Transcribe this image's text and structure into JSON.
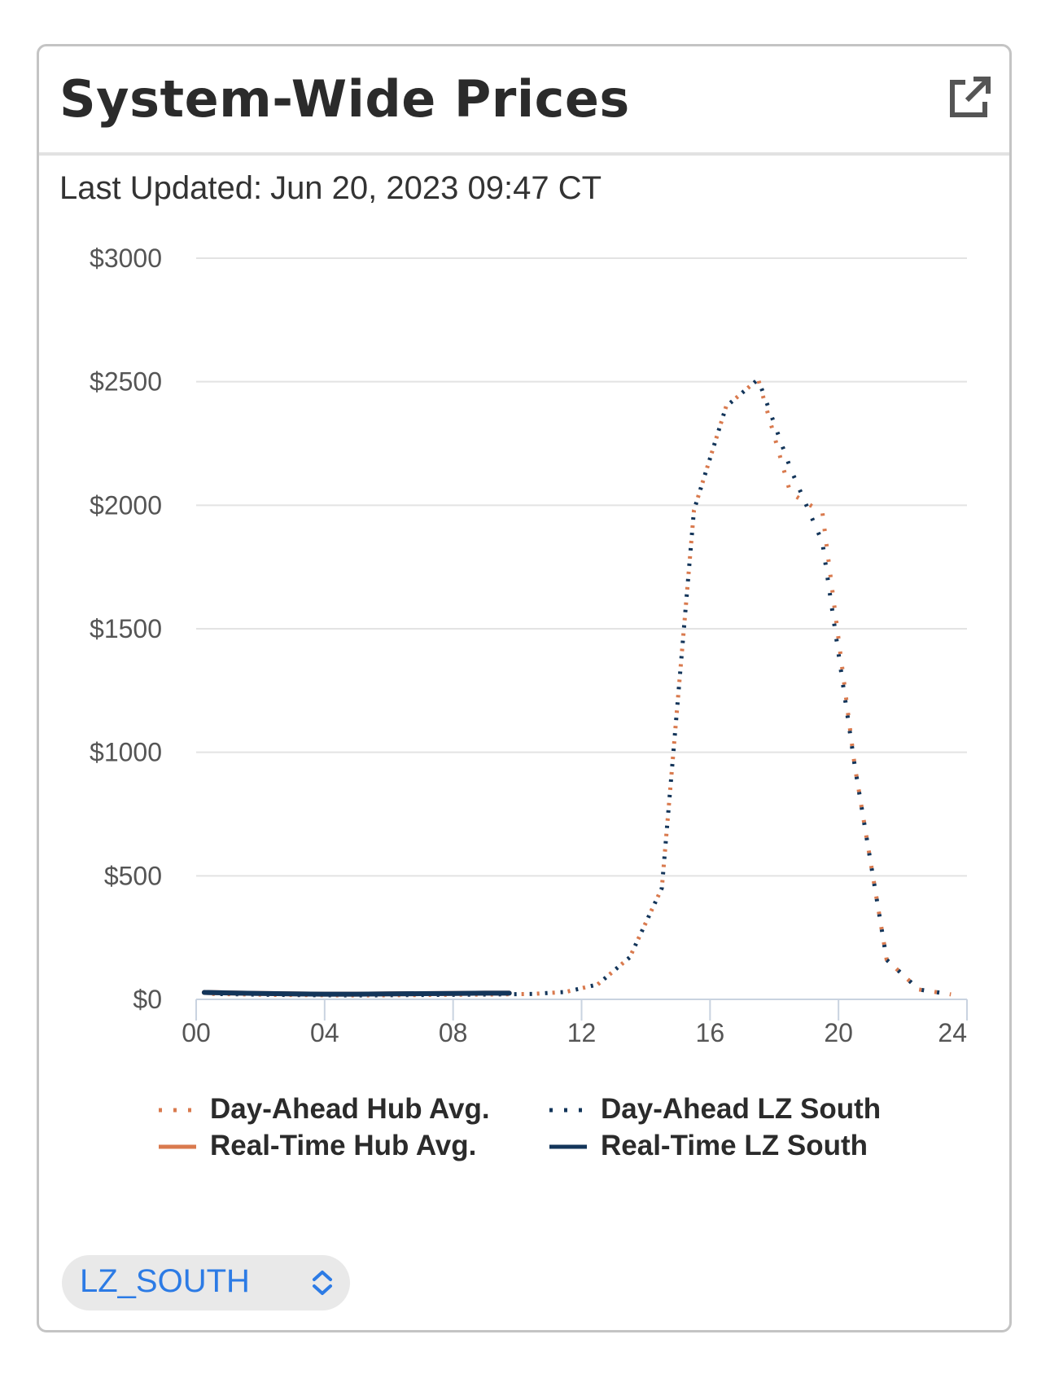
{
  "card": {
    "title": "System-Wide Prices",
    "open_icon": "external-link-icon",
    "last_updated_label": "Last Updated:",
    "last_updated_value": "Jun 20, 2023 09:47 CT"
  },
  "zone_select": {
    "value": "LZ_SOUTH",
    "arrow_icon": "chevron-up-down-icon",
    "accent_color": "#2c7be5"
  },
  "chart_data": {
    "type": "line",
    "y_ticks": [
      "$3000",
      "$2500",
      "$2000",
      "$1500",
      "$1000",
      "$500",
      "$0"
    ],
    "y_tick_values": [
      3000,
      2500,
      2000,
      1500,
      1000,
      500,
      0
    ],
    "x_ticks": [
      "00",
      "04",
      "08",
      "12",
      "16",
      "20",
      "24"
    ],
    "x_tick_values": [
      0,
      4,
      8,
      12,
      16,
      20,
      24
    ],
    "ylim": [
      0,
      3000
    ],
    "xlim": [
      0,
      24
    ],
    "grid": true,
    "legend_position": "bottom",
    "series": [
      {
        "name": "Day-Ahead Hub Avg.",
        "style": "dotted",
        "color": "#d97a4e",
        "x": [
          0.5,
          1.5,
          2.5,
          3.5,
          4.5,
          5.5,
          6.5,
          7.5,
          8.5,
          9.5,
          10.5,
          11.5,
          12.5,
          13.5,
          14.5,
          15.5,
          16.5,
          17.5,
          18.5,
          19.5,
          20.5,
          21.5,
          22.5,
          23.5
        ],
        "y": [
          22,
          20,
          18,
          17,
          16,
          16,
          17,
          18,
          19,
          20,
          22,
          30,
          60,
          170,
          450,
          1980,
          2400,
          2510,
          2050,
          1970,
          950,
          160,
          40,
          20
        ]
      },
      {
        "name": "Day-Ahead LZ South",
        "style": "dotted",
        "color": "#13355a",
        "x": [
          0.5,
          1.5,
          2.5,
          3.5,
          4.5,
          5.5,
          6.5,
          7.5,
          8.5,
          9.5,
          10.5,
          11.5,
          12.5,
          13.5,
          14.5,
          15.5,
          16.5,
          17.5,
          18.5,
          19.5,
          20.5,
          21.5,
          22.5,
          23.5
        ],
        "y": [
          22,
          20,
          18,
          17,
          16,
          16,
          17,
          18,
          19,
          20,
          22,
          30,
          60,
          170,
          450,
          1980,
          2400,
          2510,
          2150,
          1850,
          950,
          160,
          40,
          20
        ]
      },
      {
        "name": "Real-Time Hub Avg.",
        "style": "solid",
        "color": "#d97a4e",
        "x": [
          0.25,
          1,
          2,
          3,
          4,
          5,
          6,
          7,
          8,
          9,
          9.75
        ],
        "y": [
          28,
          26,
          24,
          22,
          21,
          21,
          22,
          23,
          24,
          25,
          25
        ]
      },
      {
        "name": "Real-Time LZ South",
        "style": "solid",
        "color": "#13355a",
        "x": [
          0.25,
          1,
          2,
          3,
          4,
          5,
          6,
          7,
          8,
          9,
          9.75
        ],
        "y": [
          28,
          26,
          24,
          22,
          21,
          21,
          22,
          23,
          24,
          25,
          25
        ]
      }
    ]
  }
}
